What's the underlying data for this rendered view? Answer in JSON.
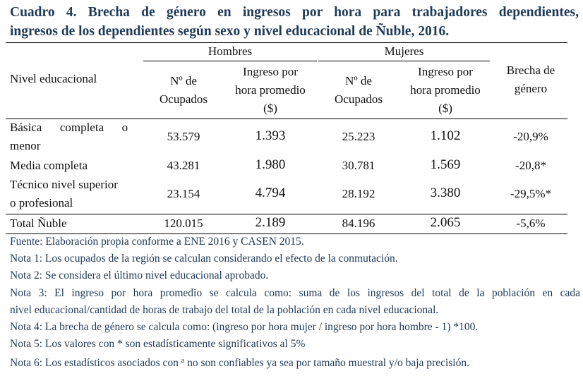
{
  "title": {
    "line1": "Cuadro 4. Brecha de género en ingresos por hora para trabajadores dependientes,",
    "line2": "ingresos de los dependientes según sexo y nivel educacional de Ñuble, 2016."
  },
  "table": {
    "group_headers": {
      "hombres": "Hombres",
      "mujeres": "Mujeres"
    },
    "col_nivel": "Nivel educacional",
    "col_ocupados": [
      "Nº de",
      "Ocupados"
    ],
    "col_ingreso": [
      "Ingreso por",
      "hora promedio",
      "($)"
    ],
    "col_brecha": [
      "Brecha de",
      "género"
    ],
    "rows": [
      {
        "nivel": [
          "Básica      completa      o",
          "menor"
        ],
        "h_ocupados": "53.579",
        "h_ingreso": "1.393",
        "m_ocupados": "25.223",
        "m_ingreso": "1.102",
        "brecha": "-20,9%"
      },
      {
        "nivel": [
          "Media completa"
        ],
        "h_ocupados": "43.281",
        "h_ingreso": "1.980",
        "m_ocupados": "30.781",
        "m_ingreso": "1.569",
        "brecha": "-20,8*"
      },
      {
        "nivel": [
          "Técnico nivel superior",
          "o profesional"
        ],
        "h_ocupados": "23.154",
        "h_ingreso": "4.794",
        "m_ocupados": "28.192",
        "m_ingreso": "3.380",
        "brecha": "-29,5%*"
      },
      {
        "nivel": [
          "Total Ñuble"
        ],
        "h_ocupados": "120.015",
        "h_ingreso": "2.189",
        "m_ocupados": "84.196",
        "m_ingreso": "2.065",
        "brecha": "-5,6%"
      }
    ]
  },
  "notes": {
    "fuente": "Fuente: Elaboración propia conforme a ENE 2016 y CASEN 2015.",
    "nota1": "Nota 1: Los ocupados de la región se calculan considerando el efecto de la conmutación.",
    "nota2": "Nota 2: Se considera el último nivel educacional aprobado.",
    "nota3_a": "Nota 3: El ingreso por hora promedio se calcula como: suma de los ingresos del total de la población en cada",
    "nota3_b": "nivel educacional/cantidad de horas de trabajo del total de la población en cada nivel educacional.",
    "nota4": "Nota 4: La brecha de género se calcula como: (ingreso por hora mujer / ingreso por hora hombre - 1) *100.",
    "nota5": "Nota 5: Los valores con * son estadísticamente significativos al 5%",
    "nota6_pre": "Nota 6: Los estadísticos asociados con",
    "nota6_sup": "a",
    "nota6_post": " no son confiables ya sea por tamaño muestral y/o baja precisión."
  },
  "colors": {
    "title": "#1f3a57",
    "notes": "#1f3a57",
    "text": "#111111"
  }
}
